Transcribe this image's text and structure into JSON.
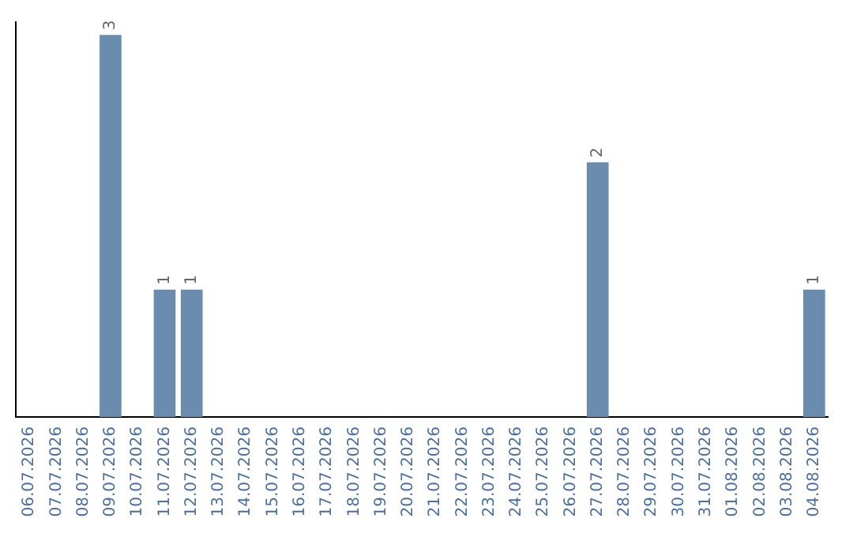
{
  "chart_data": {
    "type": "bar",
    "categories": [
      "06.07.2026",
      "07.07.2026",
      "08.07.2026",
      "09.07.2026",
      "10.07.2026",
      "11.07.2026",
      "12.07.2026",
      "13.07.2026",
      "14.07.2026",
      "15.07.2026",
      "16.07.2026",
      "17.07.2026",
      "18.07.2026",
      "19.07.2026",
      "20.07.2026",
      "21.07.2026",
      "22.07.2026",
      "23.07.2026",
      "24.07.2026",
      "25.07.2026",
      "26.07.2026",
      "27.07.2026",
      "28.07.2026",
      "29.07.2026",
      "30.07.2026",
      "31.07.2026",
      "01.08.2026",
      "02.08.2026",
      "03.08.2026",
      "04.08.2026"
    ],
    "values": [
      0,
      0,
      0,
      3,
      0,
      1,
      1,
      0,
      0,
      0,
      0,
      0,
      0,
      0,
      0,
      0,
      0,
      0,
      0,
      0,
      0,
      2,
      0,
      0,
      0,
      0,
      0,
      0,
      0,
      1
    ],
    "value_labels": [
      null,
      null,
      null,
      "3",
      null,
      "1",
      "1",
      null,
      null,
      null,
      null,
      null,
      null,
      null,
      null,
      null,
      null,
      null,
      null,
      null,
      null,
      "2",
      null,
      null,
      null,
      null,
      null,
      null,
      null,
      "1"
    ],
    "color": "#6a8caf",
    "ylim": [
      0,
      3.1
    ],
    "tick_labels": "x",
    "grid": false,
    "legend": false
  }
}
